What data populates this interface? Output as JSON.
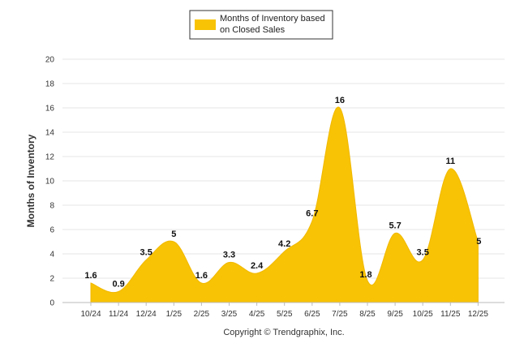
{
  "chart_data": {
    "type": "area",
    "legend": [
      "Months of Inventory based",
      "on Closed Sales"
    ],
    "legend_position": "top",
    "categories": [
      "10/24",
      "11/24",
      "12/24",
      "1/25",
      "2/25",
      "3/25",
      "4/25",
      "5/25",
      "6/25",
      "7/25",
      "8/25",
      "9/25",
      "10/25",
      "11/25",
      "12/25"
    ],
    "series": [
      {
        "name": "Months of Inventory based on Closed Sales",
        "values": [
          1.6,
          0.9,
          3.5,
          5,
          1.6,
          3.3,
          2.4,
          4.2,
          6.7,
          16,
          1.8,
          5.7,
          3.5,
          11,
          5
        ]
      }
    ],
    "data_labels": [
      "1.6",
      "0.9",
      "3.5",
      "5",
      "1.6",
      "3.3",
      "2.4",
      "4.2",
      "6.7",
      "16",
      "1.8",
      "5.7",
      "3.5",
      "11",
      "5"
    ],
    "ylabel": "Months of Inventory",
    "xlabel": "",
    "ylim": [
      0,
      20
    ],
    "yticks": [
      "0",
      "2",
      "4",
      "6",
      "8",
      "10",
      "12",
      "14",
      "16",
      "18",
      "20"
    ],
    "grid": true,
    "colors": {
      "fill": "#f8c304",
      "stroke": "#f1b800"
    }
  },
  "footer": {
    "credit": "Copyright © Trendgraphix, Inc."
  }
}
